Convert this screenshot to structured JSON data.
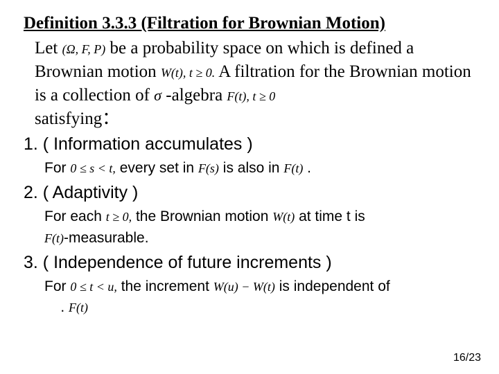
{
  "title": "Definition 3.3.3 (Filtration for Brownian Motion)",
  "intro": {
    "let": "Let",
    "prob_space": "(Ω, F, P)",
    "be": " be a probability space on which is defined a Brownian motion ",
    "bm": "W(t), t ≥ 0.",
    "filtration": "   A filtration for the Brownian motion is a collection of ",
    "sigma": "σ",
    "algebra": " -algebra ",
    "ft": "F(t), t ≥ 0",
    "satisfying": "satisfying："
  },
  "item1": {
    "label": "1. ( Information accumulates )",
    "for": "For ",
    "cond": "0 ≤ s < t,",
    "mid1": " every set in ",
    "fs": "F(s)",
    "mid2": " is also in ",
    "ft": "F(t)",
    "end": " ."
  },
  "item2": {
    "label": "2. ( Adaptivity )",
    "for": "For each ",
    "cond": "t ≥ 0,",
    "mid1": "  the Brownian motion ",
    "wt": "W(t)",
    "mid2": " at time t is",
    "line2a": "",
    "ft": "F(t)",
    "line2b": "-measurable."
  },
  "item3": {
    "label": "3. ( Independence of future increments )",
    "for": "For ",
    "cond": "0 ≤ t < u,",
    "mid1": "  the increment ",
    "inc": "W(u) − W(t)",
    "mid2": " is independent of",
    "line2a": "    .",
    "ft": "F(t)"
  },
  "page": "16/23"
}
